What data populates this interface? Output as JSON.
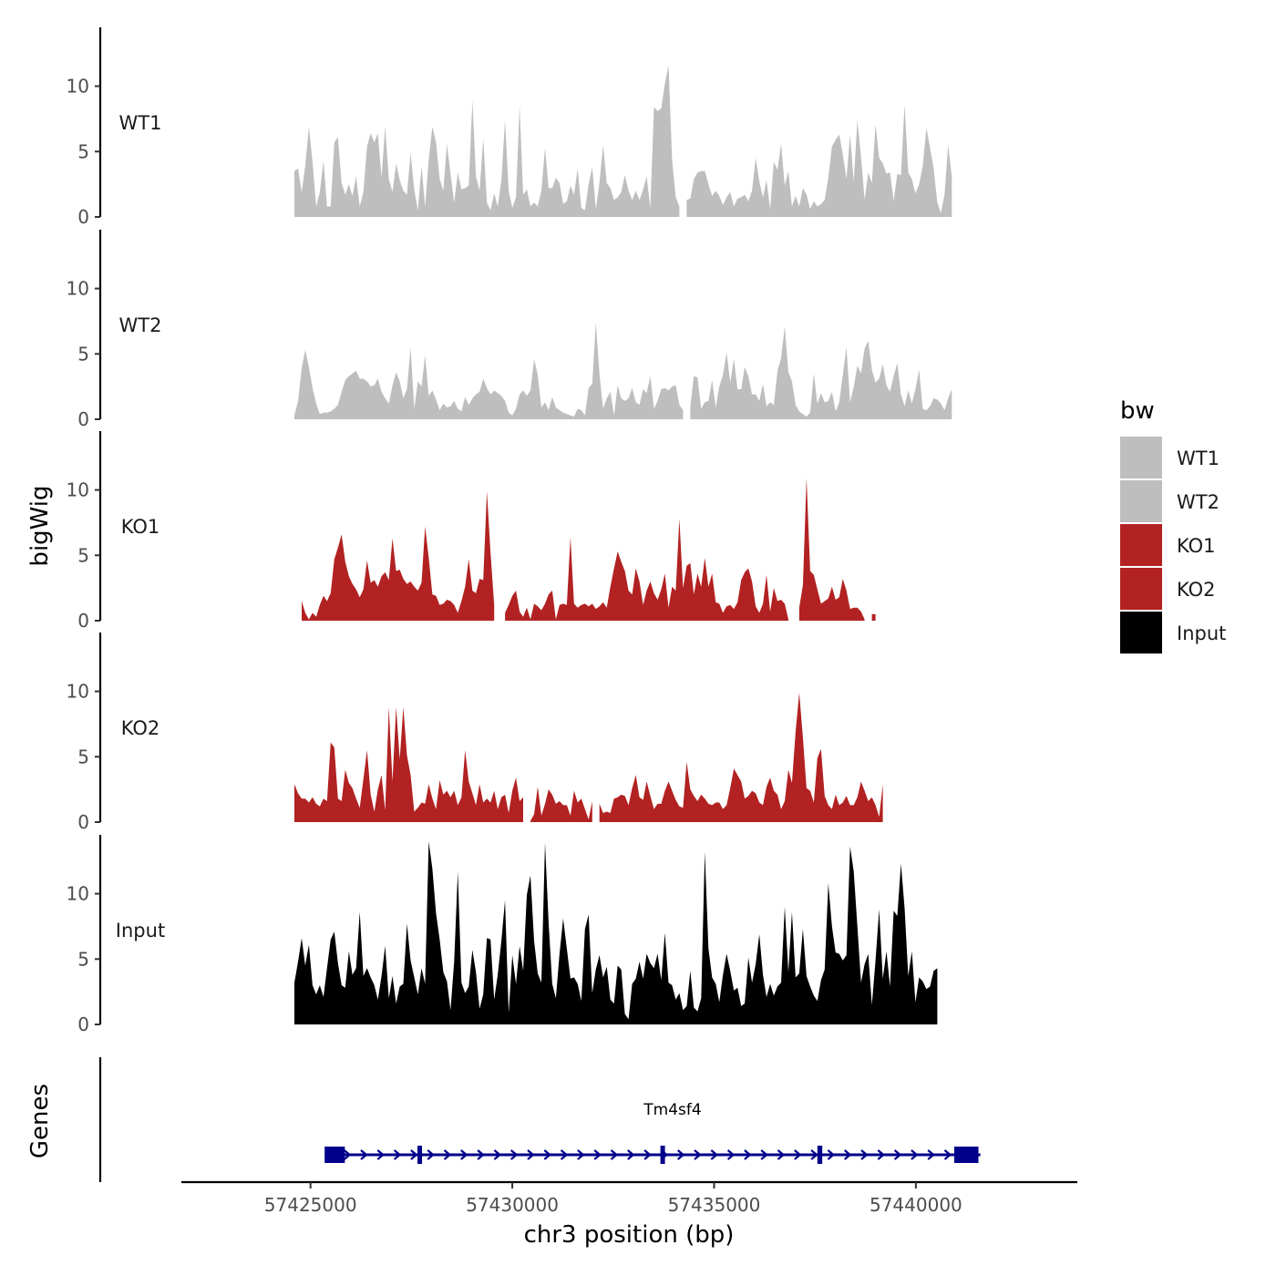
{
  "chart_data": {
    "type": "area",
    "x_axis": {
      "label": "chr3 position (bp)",
      "range": [
        57421800,
        57444000
      ],
      "ticks": [
        57425000,
        57430000,
        57435000,
        57440000
      ],
      "tick_labels": [
        "57425000",
        "57430000",
        "57435000",
        "57440000"
      ]
    },
    "y_axis": {
      "label": "bigWig",
      "range": [
        0,
        14.5
      ],
      "ticks": [
        0,
        5,
        10
      ],
      "tick_labels": [
        "0",
        "5",
        "10"
      ]
    },
    "x_start": 57424600,
    "x_step": 90,
    "tracks": [
      {
        "name": "WT1",
        "color": "#bebebe",
        "values": [
          3.5,
          3.7,
          1.9,
          3.9,
          6.9,
          4.2,
          0.8,
          1.9,
          4.3,
          0.8,
          0.8,
          5.7,
          6.1,
          2.6,
          1.7,
          2.5,
          1.6,
          3.1,
          0.8,
          1.9,
          5.4,
          6.4,
          5.7,
          6.4,
          3.0,
          6.9,
          2.9,
          1.9,
          4.1,
          2.8,
          2.0,
          1.7,
          4.9,
          2.1,
          0.5,
          3.9,
          0.8,
          4.4,
          6.9,
          5.7,
          2.9,
          2.0,
          5.6,
          3.3,
          1.1,
          3.4,
          2.1,
          2.2,
          2.4,
          8.9,
          3.1,
          2.0,
          6.0,
          1.1,
          0.5,
          1.8,
          0.8,
          2.8,
          7.4,
          2.0,
          0.7,
          1.5,
          8.5,
          1.7,
          2.1,
          0.8,
          1.1,
          0.8,
          2.0,
          5.3,
          2.2,
          2.2,
          3.0,
          2.6,
          1.0,
          1.2,
          2.4,
          1.7,
          3.7,
          0.7,
          0.5,
          2.5,
          3.8,
          0.6,
          2.6,
          5.5,
          2.6,
          2.2,
          1.3,
          1.5,
          1.9,
          3.2,
          2.0,
          1.3,
          2.0,
          1.3,
          2.1,
          3.1,
          0.7,
          8.4,
          8.1,
          8.3,
          10.2,
          11.6,
          4.4,
          1.5,
          0.8,
          0.0,
          1.3,
          1.4,
          2.9,
          3.4,
          3.5,
          3.5,
          2.5,
          1.6,
          2.0,
          1.6,
          0.9,
          1.5,
          1.9,
          0.8,
          1.4,
          1.5,
          1.7,
          1.2,
          2.0,
          4.5,
          2.7,
          1.5,
          2.8,
          0.6,
          4.2,
          3.6,
          5.6,
          2.4,
          3.5,
          0.8,
          1.6,
          0.8,
          2.2,
          1.7,
          0.6,
          1.2,
          0.8,
          1.0,
          1.3,
          3.0,
          5.4,
          5.9,
          6.3,
          4.8,
          2.9,
          6.3,
          2.7,
          7.4,
          4.6,
          1.3,
          3.4,
          2.6,
          7.1,
          4.5,
          4.1,
          3.3,
          3.4,
          1.2,
          3.3,
          3.2,
          8.6,
          3.4,
          2.9,
          1.8,
          2.5,
          3.9,
          6.8,
          5.3,
          3.7,
          1.1,
          0.3,
          1.7,
          5.5,
          3.1
        ]
      },
      {
        "name": "WT2",
        "color": "#bebebe",
        "values": [
          0.3,
          1.4,
          3.9,
          5.3,
          4.0,
          2.4,
          1.2,
          0.4,
          0.5,
          0.5,
          0.6,
          0.8,
          1.1,
          2.1,
          3.0,
          3.3,
          3.5,
          3.7,
          3.1,
          3.1,
          2.9,
          2.5,
          2.6,
          3.1,
          2.1,
          1.6,
          1.2,
          2.6,
          3.6,
          2.9,
          1.6,
          2.3,
          5.5,
          0.8,
          2.9,
          2.5,
          4.9,
          1.8,
          2.2,
          1.5,
          0.7,
          1.2,
          0.9,
          1.0,
          1.4,
          0.8,
          0.6,
          1.7,
          1.1,
          1.6,
          1.9,
          2.1,
          3.1,
          2.4,
          1.9,
          2.2,
          2.0,
          1.8,
          1.4,
          0.5,
          0.3,
          0.8,
          1.9,
          2.2,
          1.8,
          2.2,
          4.6,
          3.4,
          0.9,
          1.3,
          0.7,
          1.7,
          0.9,
          0.7,
          0.5,
          0.4,
          0.3,
          0.2,
          0.8,
          0.7,
          0.3,
          2.4,
          2.7,
          7.4,
          3.5,
          0.8,
          1.6,
          2.1,
          0.3,
          2.6,
          1.6,
          1.4,
          1.6,
          2.4,
          1.3,
          1.1,
          2.3,
          2.0,
          3.3,
          0.8,
          1.4,
          2.3,
          2.4,
          2.2,
          2.5,
          2.6,
          1.1,
          0.7,
          0.0,
          1.0,
          3.3,
          3.2,
          0.8,
          1.3,
          1.4,
          3.0,
          0.9,
          2.5,
          3.4,
          5.1,
          2.8,
          4.6,
          2.3,
          2.3,
          4.0,
          3.3,
          1.9,
          1.9,
          1.4,
          2.7,
          1.0,
          1.3,
          1.1,
          3.7,
          4.7,
          7.1,
          3.6,
          2.9,
          1.1,
          0.6,
          0.4,
          0.2,
          0.5,
          3.5,
          1.2,
          2.0,
          1.3,
          1.4,
          2.1,
          0.6,
          1.3,
          3.4,
          5.5,
          1.3,
          2.5,
          4.1,
          3.5,
          5.4,
          6.0,
          3.8,
          2.8,
          3.1,
          4.2,
          2.6,
          2.1,
          3.3,
          4.3,
          1.9,
          1.0,
          2.2,
          1.2,
          2.3,
          3.8,
          0.8,
          0.7,
          1.0,
          1.6,
          1.5,
          1.2,
          0.7,
          1.6,
          2.3
        ]
      },
      {
        "name": "KO1",
        "color": "#b22222",
        "values": [
          0.5,
          0.0,
          1.5,
          0.6,
          0.1,
          0.6,
          0.3,
          1.2,
          1.9,
          1.5,
          2.1,
          4.7,
          5.6,
          6.6,
          4.5,
          3.4,
          2.8,
          2.4,
          1.8,
          2.4,
          4.6,
          2.9,
          3.1,
          2.6,
          3.4,
          3.7,
          3.1,
          6.3,
          3.8,
          3.9,
          3.2,
          2.8,
          3.0,
          2.6,
          2.3,
          2.9,
          7.2,
          4.8,
          2.0,
          1.9,
          1.2,
          1.3,
          1.6,
          1.5,
          1.2,
          0.6,
          1.5,
          2.6,
          4.7,
          2.3,
          2.1,
          3.2,
          3.1,
          9.9,
          5.2,
          1.2,
          0.0,
          0.0,
          0.6,
          1.2,
          1.9,
          2.3,
          0.7,
          0.3,
          1.0,
          0.1,
          1.3,
          1.1,
          0.8,
          1.3,
          2.0,
          2.3,
          0.1,
          1.2,
          1.3,
          1.2,
          6.4,
          1.3,
          1.0,
          1.2,
          1.3,
          1.1,
          1.3,
          0.9,
          1.1,
          1.4,
          1.0,
          2.6,
          4.0,
          5.3,
          4.5,
          3.8,
          2.3,
          2.0,
          4.0,
          3.0,
          1.2,
          2.3,
          3.0,
          2.1,
          1.6,
          2.4,
          3.6,
          1.0,
          2.6,
          2.3,
          7.8,
          2.5,
          4.2,
          4.4,
          2.0,
          3.6,
          2.6,
          4.8,
          2.6,
          3.6,
          1.4,
          1.3,
          0.6,
          1.1,
          1.2,
          0.9,
          1.4,
          3.1,
          3.7,
          4.0,
          3.0,
          1.1,
          0.6,
          1.3,
          3.5,
          0.7,
          2.5,
          1.5,
          1.6,
          1.3,
          0.1,
          0.0,
          0.0,
          1.0,
          2.7,
          10.9,
          3.8,
          3.5,
          2.4,
          1.3,
          1.5,
          1.7,
          2.6,
          1.6,
          1.8,
          3.2,
          2.3,
          0.9,
          1.0,
          1.0,
          0.7,
          0.1,
          0.0,
          0.5,
          0.5,
          0.0
        ]
      },
      {
        "name": "KO2",
        "color": "#b22222",
        "values": [
          2.9,
          2.2,
          1.8,
          1.8,
          1.5,
          1.9,
          1.4,
          1.2,
          1.8,
          1.6,
          6.1,
          5.7,
          1.8,
          1.6,
          4.0,
          3.0,
          2.6,
          1.8,
          1.1,
          3.3,
          5.5,
          2.1,
          0.8,
          2.5,
          3.6,
          0.9,
          8.8,
          3.1,
          8.8,
          4.8,
          8.8,
          5.1,
          3.6,
          0.8,
          1.1,
          1.5,
          1.4,
          2.9,
          1.8,
          1.0,
          3.2,
          2.1,
          2.4,
          1.9,
          2.4,
          1.3,
          1.9,
          5.5,
          3.1,
          2.2,
          1.3,
          2.9,
          1.5,
          1.8,
          1.5,
          2.4,
          1.0,
          1.9,
          2.1,
          0.7,
          2.4,
          3.4,
          1.6,
          1.9,
          0.0,
          0.1,
          0.6,
          2.7,
          0.5,
          1.4,
          2.5,
          2.1,
          1.4,
          1.6,
          1.3,
          1.3,
          0.5,
          2.4,
          1.5,
          1.8,
          1.0,
          0.2,
          1.6,
          0.0,
          1.4,
          0.7,
          0.8,
          0.7,
          1.8,
          1.9,
          2.1,
          2.0,
          1.3,
          2.6,
          3.6,
          1.9,
          1.7,
          3.1,
          2.0,
          1.0,
          1.4,
          1.4,
          2.4,
          3.1,
          2.4,
          1.7,
          1.2,
          1.1,
          4.6,
          2.5,
          2.0,
          1.6,
          2.1,
          1.8,
          1.4,
          1.3,
          1.5,
          1.5,
          1.0,
          1.3,
          2.6,
          4.1,
          3.6,
          3.1,
          1.8,
          2.0,
          2.4,
          2.2,
          1.5,
          1.3,
          2.7,
          3.4,
          2.4,
          2.1,
          1.0,
          1.6,
          4.0,
          3.0,
          6.9,
          9.9,
          6.5,
          2.6,
          2.4,
          1.5,
          4.9,
          5.6,
          2.0,
          1.3,
          1.0,
          2.1,
          1.3,
          1.5,
          2.0,
          1.3,
          1.3,
          1.9,
          3.1,
          2.4,
          1.6,
          1.9,
          1.3,
          0.4,
          2.9
        ]
      },
      {
        "name": "Input",
        "color": "#000000",
        "values": [
          3.2,
          4.8,
          6.6,
          4.5,
          6.1,
          3.0,
          2.3,
          3.0,
          2.1,
          4.3,
          6.5,
          7.1,
          4.7,
          3.0,
          2.8,
          5.6,
          3.8,
          4.3,
          8.6,
          3.7,
          4.3,
          3.6,
          3.0,
          1.9,
          3.7,
          6.0,
          2.0,
          3.7,
          1.6,
          2.9,
          3.1,
          7.7,
          4.9,
          3.6,
          2.3,
          4.3,
          3.1,
          14.0,
          11.9,
          8.5,
          6.5,
          4.0,
          3.3,
          1.1,
          4.8,
          11.7,
          3.2,
          2.4,
          2.9,
          5.7,
          4.0,
          1.2,
          2.3,
          6.6,
          6.5,
          1.9,
          3.8,
          6.4,
          9.5,
          0.9,
          5.3,
          3.1,
          6.0,
          4.1,
          9.9,
          11.4,
          6.4,
          3.9,
          3.2,
          13.9,
          7.8,
          3.1,
          2.0,
          5.4,
          8.1,
          5.8,
          3.5,
          3.6,
          3.1,
          1.8,
          7.3,
          8.4,
          2.4,
          4.2,
          5.3,
          3.6,
          4.4,
          1.9,
          1.6,
          4.5,
          4.2,
          0.8,
          0.4,
          3.1,
          3.5,
          4.8,
          3.5,
          5.4,
          4.7,
          4.3,
          5.4,
          3.4,
          7.0,
          3.2,
          3.0,
          1.9,
          2.4,
          1.1,
          1.4,
          4.1,
          1.3,
          1.0,
          2.0,
          13.2,
          5.8,
          3.6,
          3.1,
          1.7,
          3.8,
          5.4,
          4.1,
          2.6,
          2.8,
          1.4,
          1.6,
          5.1,
          3.2,
          4.6,
          6.9,
          3.8,
          2.1,
          3.1,
          2.2,
          2.9,
          3.2,
          9.0,
          4.0,
          8.6,
          3.6,
          3.9,
          7.3,
          3.7,
          2.9,
          2.2,
          1.8,
          3.4,
          4.2,
          10.8,
          7.5,
          5.5,
          5.4,
          4.9,
          5.3,
          13.6,
          11.7,
          7.5,
          3.2,
          4.6,
          5.4,
          1.5,
          4.9,
          8.8,
          3.5,
          5.6,
          2.9,
          8.7,
          8.3,
          12.3,
          8.9,
          3.7,
          5.6,
          1.7,
          3.6,
          3.3,
          2.7,
          2.9,
          4.1,
          4.3
        ]
      }
    ],
    "legend": {
      "title": "bw",
      "entries": [
        {
          "label": "WT1",
          "color": "#bebebe"
        },
        {
          "label": "WT2",
          "color": "#bebebe"
        },
        {
          "label": "KO1",
          "color": "#b22222"
        },
        {
          "label": "KO2",
          "color": "#b22222"
        },
        {
          "label": "Input",
          "color": "#000000"
        }
      ],
      "placement": "right"
    },
    "genes_track": {
      "label": "Genes",
      "color": "#00008b",
      "gene_name": "Tm4sf4",
      "strand": "+",
      "start": 57425400,
      "end": 57441600,
      "exons": [
        {
          "start": 57425350,
          "end": 57425850
        },
        {
          "start": 57427650,
          "end": 57427700
        },
        {
          "start": 57433670,
          "end": 57433780
        },
        {
          "start": 57437560,
          "end": 57437680
        },
        {
          "start": 57440950,
          "end": 57441550
        }
      ]
    }
  }
}
